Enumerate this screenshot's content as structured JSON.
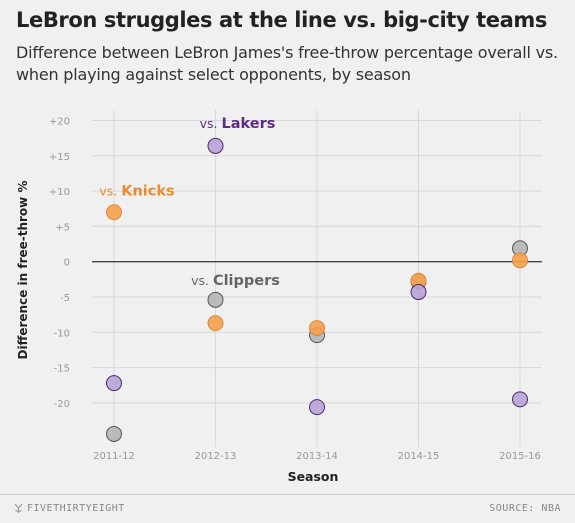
{
  "header": {
    "title": "LeBron struggles at the line vs. big-city teams",
    "subtitle": "Difference between LeBron James's free-throw percentage overall vs. when playing against select opponents, by season"
  },
  "footer": {
    "brand": "FIVETHIRTYEIGHT",
    "source": "SOURCE: NBA"
  },
  "chart_data": {
    "type": "scatter",
    "xlabel": "Season",
    "ylabel": "Difference in free-throw %",
    "categories": [
      "2011-12",
      "2012-13",
      "2013-14",
      "2014-15",
      "2015-16"
    ],
    "yticks": [
      "+20",
      "+15",
      "+10",
      "+5",
      "0",
      "-5",
      "-10",
      "-15",
      "-20"
    ],
    "ylim": [
      -25,
      21
    ],
    "grid": true,
    "series": [
      {
        "name": "Knicks",
        "label_prefix": "vs.",
        "color": "#f6a04d",
        "values": [
          7.0,
          -8.7,
          -9.4,
          -2.7,
          0.2
        ]
      },
      {
        "name": "Lakers",
        "label_prefix": "vs.",
        "color": "#b9a3d6",
        "values": [
          -17.2,
          16.4,
          -20.6,
          -4.3,
          -19.5
        ]
      },
      {
        "name": "Clippers",
        "label_prefix": "vs.",
        "color": "#b5b5b5",
        "values": [
          -24.4,
          -5.4,
          -10.4,
          -2.8,
          1.9
        ]
      }
    ],
    "label_colors": {
      "Knicks": "#ed8a2f",
      "Lakers": "#5e2c85",
      "Clippers": "#666666"
    }
  }
}
